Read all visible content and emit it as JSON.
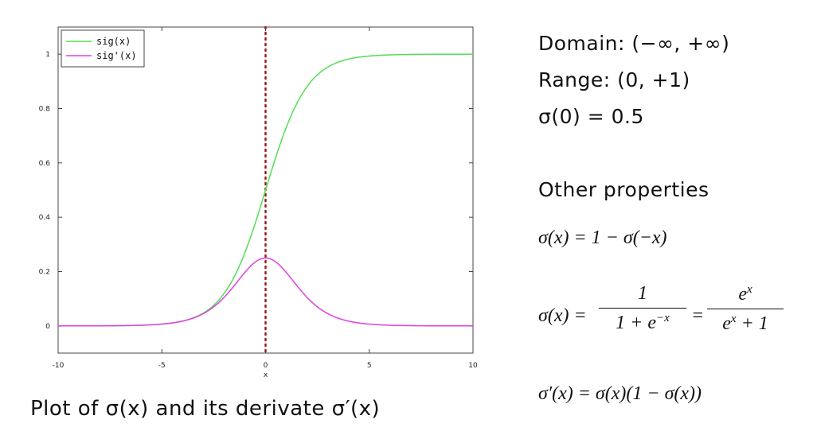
{
  "chart_data": {
    "type": "line",
    "xlabel": "x",
    "xlim": [
      -10,
      10
    ],
    "ylim": [
      -0.1,
      1.1
    ],
    "x_ticks": [
      "-10",
      "-5",
      "0",
      "5",
      "10"
    ],
    "y_ticks": [
      "0",
      "0.2",
      "0.4",
      "0.6",
      "0.8",
      "1"
    ],
    "legend_position": "top-left",
    "grid": false,
    "vline": {
      "x": 0,
      "style": "dotted",
      "color": "#9b1c1c"
    },
    "series": [
      {
        "name": "sig(x)",
        "color": "#55dd55",
        "x": [
          -10,
          -9,
          -8,
          -7,
          -6,
          -5,
          -4,
          -3,
          -2,
          -1,
          0,
          1,
          2,
          3,
          4,
          5,
          6,
          7,
          8,
          9,
          10
        ],
        "values": [
          0.0,
          0.0001,
          0.0003,
          0.0009,
          0.0025,
          0.0067,
          0.018,
          0.0474,
          0.1192,
          0.2689,
          0.5,
          0.7311,
          0.8808,
          0.9526,
          0.982,
          0.9933,
          0.9975,
          0.9991,
          0.9997,
          0.9999,
          1.0
        ]
      },
      {
        "name": "sig'(x)",
        "color": "#e040e0",
        "x": [
          -10,
          -9,
          -8,
          -7,
          -6,
          -5,
          -4,
          -3,
          -2,
          -1,
          0,
          1,
          2,
          3,
          4,
          5,
          6,
          7,
          8,
          9,
          10
        ],
        "values": [
          0.0,
          0.0001,
          0.0003,
          0.0009,
          0.0025,
          0.0066,
          0.0177,
          0.0452,
          0.105,
          0.1966,
          0.25,
          0.1966,
          0.105,
          0.0452,
          0.0177,
          0.0066,
          0.0025,
          0.0009,
          0.0003,
          0.0001,
          0.0
        ]
      }
    ]
  },
  "caption": "Plot of σ(x) and its derivate σ′(x)",
  "facts": {
    "domain": "Domain: (−∞, +∞)",
    "range": "Range: (0, +1)",
    "sigma0": "σ(0) = 0.5"
  },
  "other": {
    "heading": "Other properties",
    "eq1": "σ(x) = 1 − σ(−x)",
    "eq2_lhs": "σ(x) =",
    "eq2_frac1_num": "1",
    "eq2_frac1_den": "1 + e−x",
    "eq2_mid": "=",
    "eq2_frac2_num": "ex",
    "eq2_frac2_den": "ex + 1",
    "eq3": "σ′(x) = σ(x)(1 − σ(x))"
  }
}
